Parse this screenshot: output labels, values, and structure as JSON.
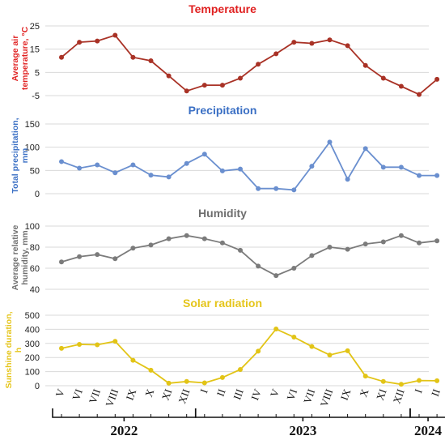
{
  "months": [
    "V",
    "VI",
    "VII",
    "VIII",
    "IX",
    "X",
    "XI",
    "XII",
    "I",
    "II",
    "III",
    "IV",
    "V",
    "VI",
    "VII",
    "VIII",
    "IX",
    "X",
    "XI",
    "XII",
    "I",
    "II"
  ],
  "years": [
    "2022",
    "2023",
    "2024"
  ],
  "chart_data": [
    {
      "type": "line",
      "title": "Temperature",
      "ylabel": "Average air temperature, °C",
      "ylim": [
        -5,
        25
      ],
      "yticks": [
        -5,
        5,
        15,
        25
      ],
      "color": "#a93226",
      "title_color": "#e02020",
      "grid": true,
      "values": [
        11.5,
        18,
        18.5,
        21,
        11.5,
        10,
        3.5,
        -3,
        -0.5,
        -0.5,
        2.5,
        8.5,
        13,
        18,
        17.5,
        19,
        16.5,
        8,
        2.5,
        -1,
        -4.5,
        2
      ]
    },
    {
      "type": "line",
      "title": "Precipitation",
      "ylabel": "Total precipitation, mm",
      "ylim": [
        0,
        150
      ],
      "yticks": [
        0,
        50,
        100,
        150
      ],
      "color": "#6a8fcf",
      "title_color": "#3a6fc4",
      "grid": true,
      "values": [
        69,
        55,
        62,
        45,
        62,
        40,
        36,
        65,
        85,
        49,
        53,
        11,
        11,
        8,
        59,
        111,
        31,
        97,
        57,
        57,
        39,
        39
      ]
    },
    {
      "type": "line",
      "title": "Humidity",
      "ylabel": "Average relative humidity, mm",
      "ylim": [
        40,
        100
      ],
      "yticks": [
        40,
        60,
        80,
        100
      ],
      "color": "#7b7b7b",
      "title_color": "#6e6e6e",
      "grid": true,
      "values": [
        66,
        71,
        73,
        69,
        79,
        82,
        88,
        91,
        88,
        84,
        77,
        62,
        53,
        60,
        72,
        80,
        78,
        83,
        85,
        91,
        84,
        86
      ]
    },
    {
      "type": "line",
      "title": "Solar radiation",
      "ylabel": "Sunshine duration, h",
      "ylim": [
        0,
        500
      ],
      "yticks": [
        0,
        100,
        200,
        300,
        400,
        500
      ],
      "color": "#e2c416",
      "title_color": "#e5c51a",
      "grid": true,
      "values": [
        265,
        293,
        290,
        315,
        180,
        110,
        18,
        30,
        20,
        58,
        115,
        245,
        402,
        345,
        278,
        218,
        248,
        68,
        30,
        10,
        37,
        35
      ]
    }
  ]
}
